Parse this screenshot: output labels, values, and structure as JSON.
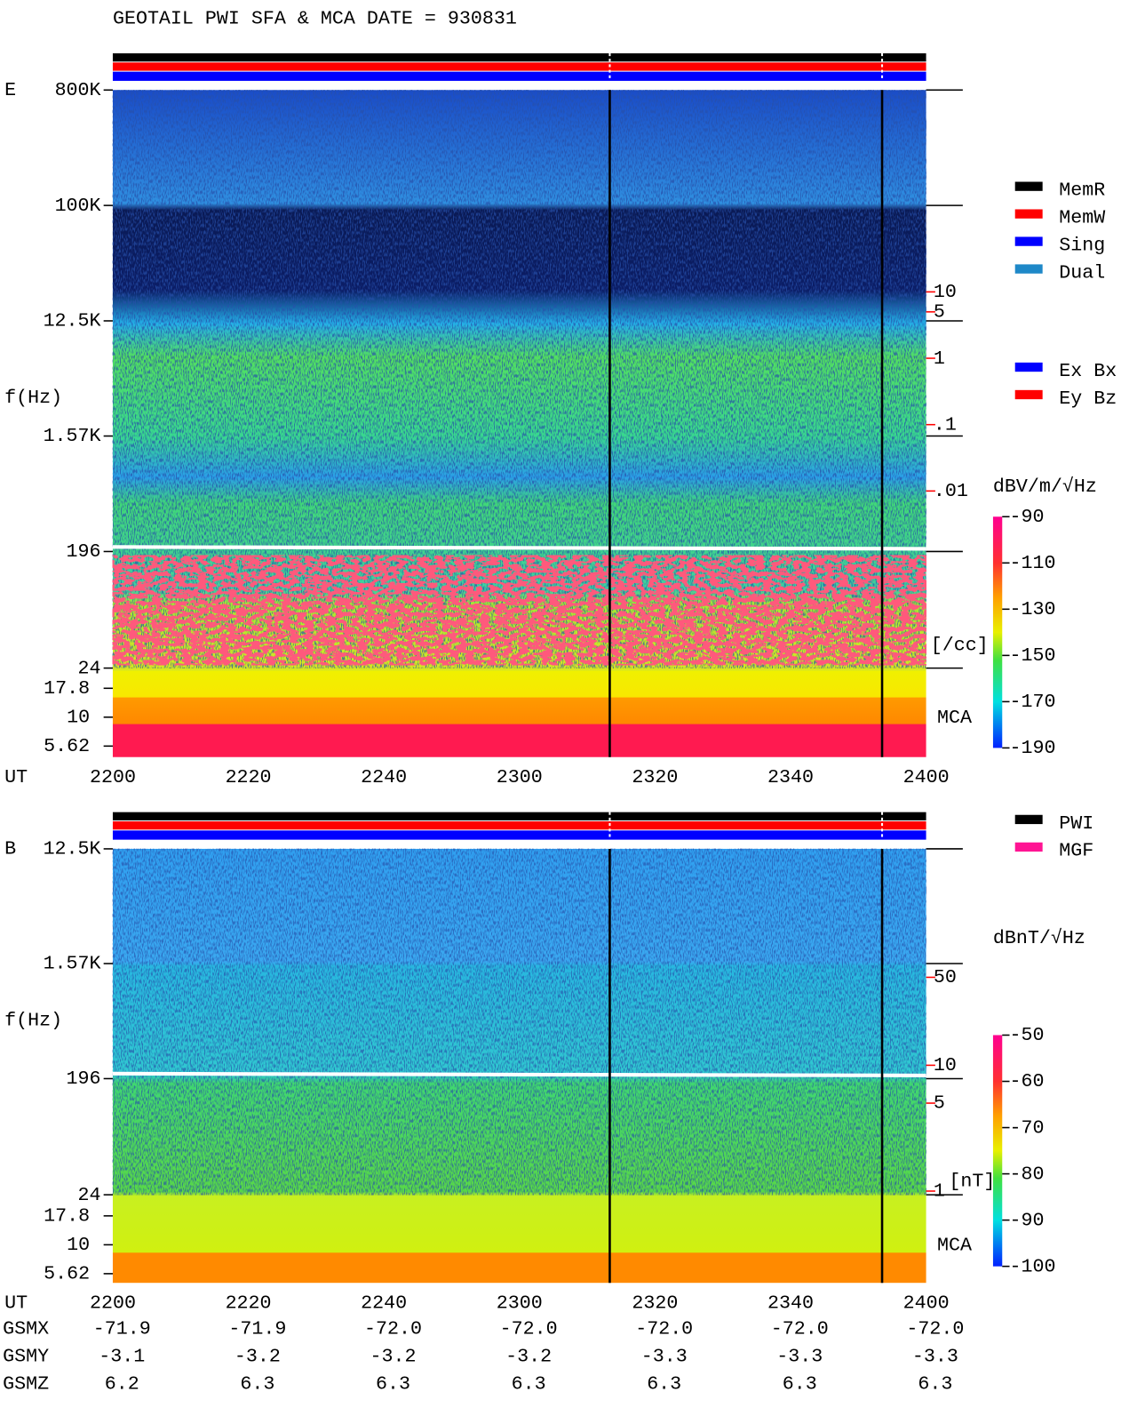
{
  "header": {
    "title": "GEOTAIL  PWI SFA & MCA   DATE = 930831"
  },
  "chart_data": [
    {
      "type": "spectrogram",
      "panel_label": "E",
      "y_label": "f(Hz)",
      "x_label": "UT",
      "yscale": "log",
      "ylim": [
        24,
        800000
      ],
      "yticks": [
        {
          "value": 800000,
          "label": "800K"
        },
        {
          "value": 100000,
          "label": "100K"
        },
        {
          "value": 12500,
          "label": "12.5K"
        },
        {
          "value": 1570,
          "label": "1.57K"
        },
        196,
        24
      ],
      "mca_label": "MCA",
      "mca_ylim": [
        5.62,
        17.8
      ],
      "mca_yticks": [
        17.8,
        10,
        5.62
      ],
      "categories": [
        "2200",
        "2220",
        "2240",
        "2300",
        "2320",
        "2340",
        "2400"
      ],
      "colorbar": {
        "label": "dBV/m/√Hz",
        "zlim": [
          -190,
          -90
        ],
        "zticks": [
          -90,
          -110,
          -130,
          -150,
          -170,
          -190
        ]
      },
      "density": {
        "label": "[/cc]",
        "color": "#ff0000",
        "scale": "log",
        "lim": [
          0.01,
          10
        ],
        "ticks": [
          10,
          5,
          1,
          {
            "value": 0.1,
            "label": ".1"
          },
          {
            "value": 0.01,
            "label": ".01"
          }
        ]
      },
      "legends": [
        [
          {
            "name": "MemR",
            "color": "#000000"
          },
          {
            "name": "MemW",
            "color": "#ff0000"
          },
          {
            "name": "Sing",
            "color": "#0000ff"
          },
          {
            "name": "Dual",
            "color": "#1e88c8"
          }
        ],
        [
          {
            "name": "Ex Bx",
            "color": "#0000ff"
          },
          {
            "name": "Ey Bz",
            "color": "#ff0000"
          }
        ]
      ]
    },
    {
      "type": "spectrogram",
      "panel_label": "B",
      "y_label": "f(Hz)",
      "x_label": "UT",
      "yscale": "log",
      "ylim": [
        24,
        12500
      ],
      "yticks": [
        {
          "value": 12500,
          "label": "12.5K"
        },
        {
          "value": 1570,
          "label": "1.57K"
        },
        196,
        24
      ],
      "mca_label": "MCA",
      "mca_ylim": [
        5.62,
        17.8
      ],
      "mca_yticks": [
        17.8,
        10,
        5.62
      ],
      "categories": [
        "2200",
        "2220",
        "2240",
        "2300",
        "2320",
        "2340",
        "2400"
      ],
      "colorbar": {
        "label": "dBnT/√Hz",
        "zlim": [
          -100,
          -50
        ],
        "zticks": [
          -50,
          -60,
          -70,
          -80,
          -90,
          -100
        ]
      },
      "density": {
        "label": "[nT]",
        "color": "#ff0000",
        "scale": "log",
        "lim": [
          1,
          50
        ],
        "ticks": [
          50,
          10,
          5,
          1
        ]
      },
      "legends": [
        [
          {
            "name": "PWI",
            "color": "#000000"
          },
          {
            "name": "MGF",
            "color": "#ff1493"
          }
        ]
      ]
    }
  ],
  "orbit": {
    "labels": [
      "GSMX",
      "GSMY",
      "GSMZ"
    ],
    "rows": [
      [
        "-71.9",
        "-71.9",
        "-72.0",
        "-72.0",
        "-72.0",
        "-72.0",
        "-72.0"
      ],
      [
        "-3.1",
        "-3.2",
        "-3.2",
        "-3.2",
        "-3.3",
        "-3.3",
        "-3.3"
      ],
      [
        "6.2",
        "6.3",
        "6.3",
        "6.3",
        "6.3",
        "6.3",
        "6.3"
      ]
    ]
  }
}
